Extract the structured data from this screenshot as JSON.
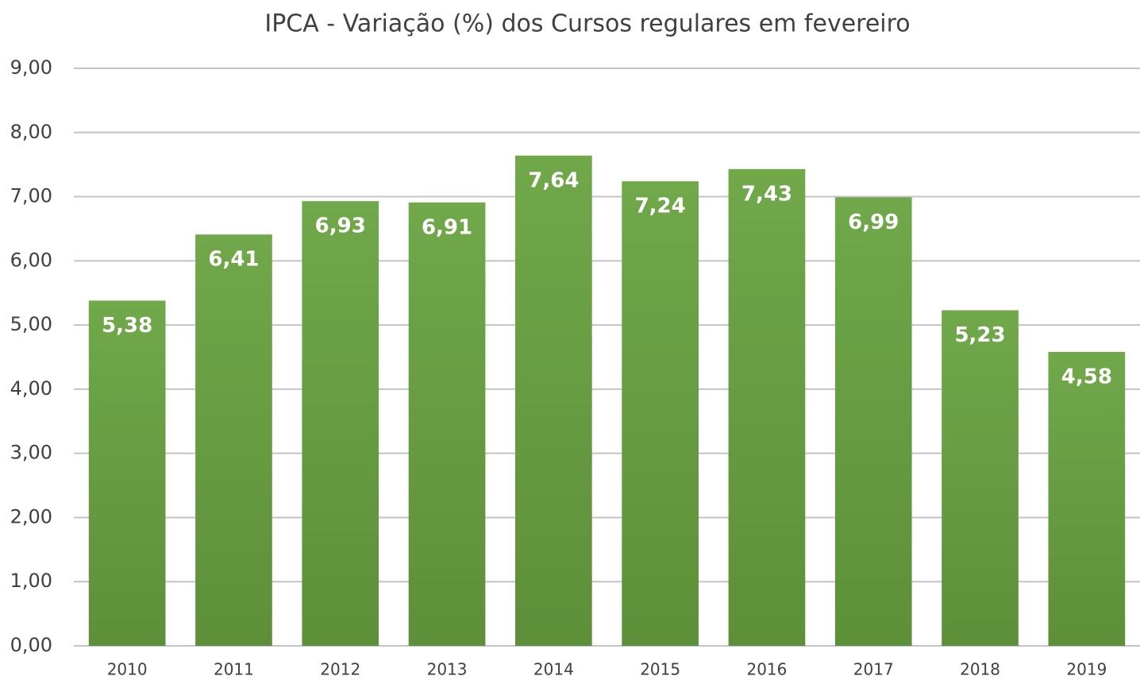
{
  "chart_data": {
    "type": "bar",
    "title": "IPCA - Variação (%) dos Cursos regulares em fevereiro",
    "categories": [
      "2010",
      "2011",
      "2012",
      "2013",
      "2014",
      "2015",
      "2016",
      "2017",
      "2018",
      "2019"
    ],
    "values": [
      5.38,
      6.41,
      6.93,
      6.91,
      7.64,
      7.24,
      7.43,
      6.99,
      5.23,
      4.58
    ],
    "value_labels": [
      "5,38",
      "6,41",
      "6,93",
      "6,91",
      "7,64",
      "7,24",
      "7,43",
      "6,99",
      "5,23",
      "4,58"
    ],
    "color": "#70a84a",
    "ylim": [
      0,
      9
    ],
    "yticks": [
      {
        "value": 0,
        "label": "0,00"
      },
      {
        "value": 1,
        "label": "1,00"
      },
      {
        "value": 2,
        "label": "2,00"
      },
      {
        "value": 3,
        "label": "3,00"
      },
      {
        "value": 4,
        "label": "4,00"
      },
      {
        "value": 5,
        "label": "5,00"
      },
      {
        "value": 6,
        "label": "6,00"
      },
      {
        "value": 7,
        "label": "7,00"
      },
      {
        "value": 8,
        "label": "8,00"
      },
      {
        "value": 9,
        "label": "9,00"
      }
    ],
    "grid": true
  }
}
